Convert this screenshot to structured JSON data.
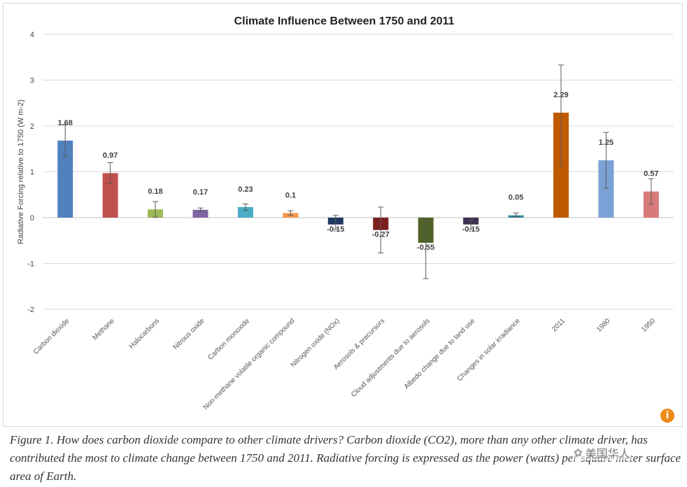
{
  "chart_data": {
    "type": "bar",
    "title": "Climate Influence Between 1750 and 2011",
    "ylabel": "Radiative Forcing relative to 1750 (W m-2)",
    "xlabel": "",
    "ylim": [
      -2,
      4
    ],
    "yticks": [
      "4",
      "3",
      "2",
      "1",
      "0",
      "-1",
      "-2"
    ],
    "grid": true,
    "categories": [
      "Carbon dioxide",
      "Methane",
      "Halocarbons",
      "Nitrous oxide",
      "Carbon monoxide",
      "Non-methane volatile organic compound",
      "Nitrogen oxide (NOx)",
      "Aerosols & precursors",
      "Cloud adjustments due to aerosols",
      "Albedo change due to land use",
      "Changes in solar irradiance",
      "2011",
      "1980",
      "1950"
    ],
    "values": [
      1.68,
      0.97,
      0.18,
      0.17,
      0.23,
      0.1,
      -0.15,
      -0.27,
      -0.55,
      -0.15,
      0.05,
      2.29,
      1.25,
      0.57
    ],
    "value_labels": [
      "1.68",
      "0.97",
      "0.18",
      "0.17",
      "0.23",
      "0.1",
      "-0.15",
      "-0.27",
      "-0.55",
      "-0.15",
      "0.05",
      "2.29",
      "1.25",
      "0.57"
    ],
    "error_low": [
      1.33,
      0.74,
      0.01,
      0.13,
      0.16,
      0.05,
      -0.25,
      -0.77,
      -1.33,
      -0.25,
      0.02,
      1.13,
      0.64,
      0.29
    ],
    "error_high": [
      2.03,
      1.2,
      0.35,
      0.21,
      0.3,
      0.15,
      0.05,
      0.23,
      -0.06,
      -0.05,
      0.1,
      3.33,
      1.86,
      0.85
    ],
    "colors": [
      "#4f81bd",
      "#c0504d",
      "#9bbb59",
      "#8064a2",
      "#4bacc6",
      "#f79646",
      "#1f3864",
      "#7b2020",
      "#4f6228",
      "#3f3151",
      "#31859c",
      "#c05a00",
      "#7aa2d6",
      "#d97a7a"
    ]
  },
  "caption": "Figure 1. How does carbon dioxide compare to other climate drivers? Carbon dioxide (CO2), more than any other climate driver, has contributed the most to climate change between 1750 and 2011. Radiative forcing is expressed as the power (watts) per square meter surface area of Earth.",
  "watermark": "美国华人",
  "info_badge": "i"
}
